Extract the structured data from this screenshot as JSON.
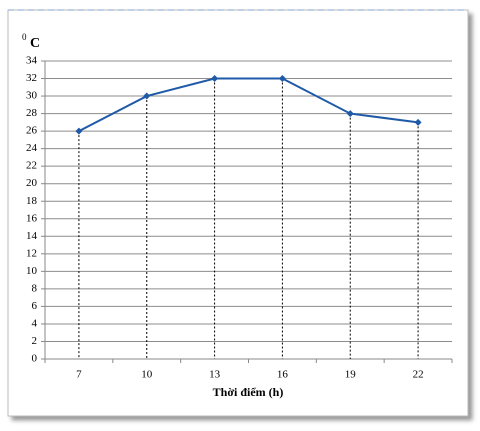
{
  "chart_data": {
    "type": "line",
    "ylabel_sup": "0",
    "ylabel": "C",
    "xlabel": "Thời điểm (h)",
    "categories": [
      "7",
      "10",
      "13",
      "16",
      "19",
      "22"
    ],
    "series": [
      {
        "color": "#1f5aa8",
        "values": [
          26,
          30,
          32,
          32,
          28,
          27
        ]
      }
    ],
    "ylim": [
      0,
      34
    ],
    "yticks": [
      0,
      2,
      4,
      6,
      8,
      10,
      12,
      14,
      16,
      18,
      20,
      22,
      24,
      26,
      28,
      30,
      32,
      34
    ],
    "grid": true,
    "drop_lines": true
  }
}
